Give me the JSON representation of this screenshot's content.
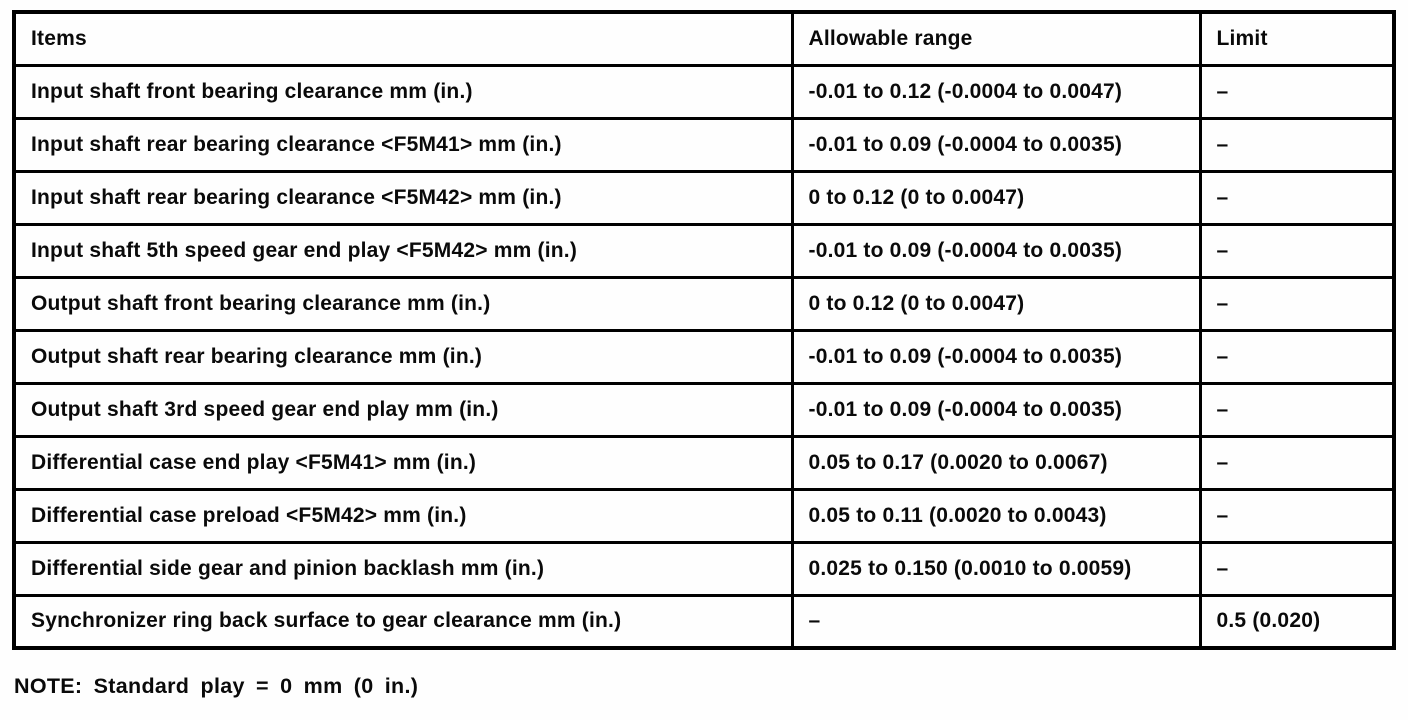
{
  "table": {
    "headers": {
      "items": "Items",
      "range": "Allowable range",
      "limit": "Limit"
    },
    "rows": [
      {
        "item": "Input shaft front bearing clearance mm (in.)",
        "range": "-0.01 to 0.12 (-0.0004 to 0.0047)",
        "limit": "–"
      },
      {
        "item": "Input shaft rear bearing clearance <F5M41> mm (in.)",
        "range": "-0.01 to 0.09 (-0.0004 to 0.0035)",
        "limit": "–"
      },
      {
        "item": "Input shaft rear bearing clearance <F5M42> mm (in.)",
        "range": "0 to 0.12 (0 to 0.0047)",
        "limit": "–"
      },
      {
        "item": "Input shaft 5th speed gear end play <F5M42> mm (in.)",
        "range": "-0.01 to 0.09 (-0.0004 to 0.0035)",
        "limit": "–"
      },
      {
        "item": "Output shaft front bearing clearance mm (in.)",
        "range": "0 to 0.12 (0 to 0.0047)",
        "limit": "–"
      },
      {
        "item": "Output shaft rear bearing clearance mm (in.)",
        "range": "-0.01 to 0.09 (-0.0004 to 0.0035)",
        "limit": "–"
      },
      {
        "item": "Output shaft 3rd speed gear end play mm (in.)",
        "range": "-0.01 to 0.09 (-0.0004 to 0.0035)",
        "limit": "–"
      },
      {
        "item": "Differential case end play <F5M41> mm (in.)",
        "range": "0.05 to 0.17 (0.0020 to 0.0067)",
        "limit": "–"
      },
      {
        "item": "Differential case preload <F5M42> mm (in.)",
        "range": "0.05 to 0.11 (0.0020 to 0.0043)",
        "limit": "–"
      },
      {
        "item": "Differential side gear and pinion backlash mm (in.)",
        "range": "0.025 to 0.150 (0.0010 to 0.0059)",
        "limit": "–"
      },
      {
        "item": "Synchronizer ring back surface to gear clearance mm (in.)",
        "range": "–",
        "limit": "0.5 (0.020)"
      }
    ]
  },
  "note": "NOTE: Standard play = 0 mm (0 in.)"
}
